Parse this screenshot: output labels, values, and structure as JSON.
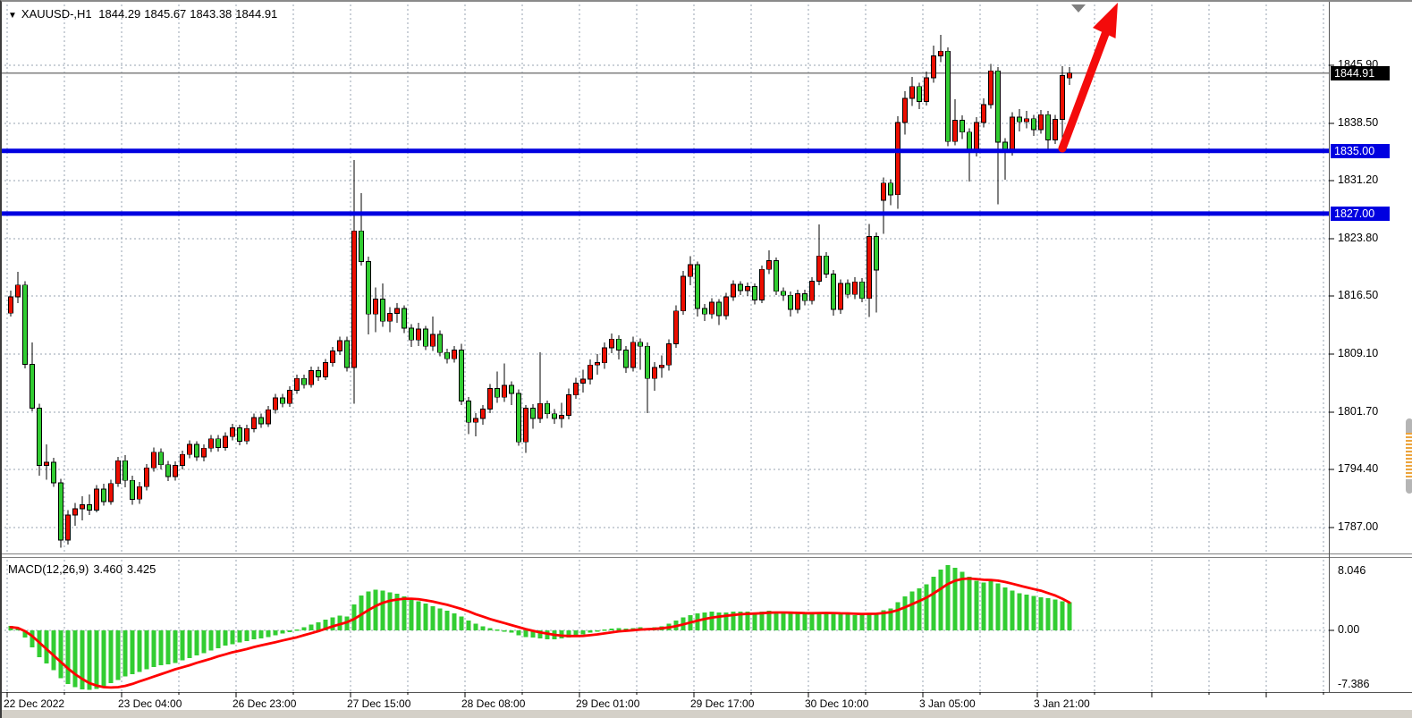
{
  "header": {
    "collapse_glyph": "▼",
    "symbol_period": "XAUUSD-,H1",
    "open": "1844.29",
    "high": "1845.67",
    "low": "1843.38",
    "close": "1844.91"
  },
  "indicator": {
    "label": "MACD(12,26,9)",
    "value": "3.460",
    "signal": "3.425"
  },
  "price_axis": {
    "bid_label": "1844.91",
    "bid_value": 1844.91,
    "levels": [
      {
        "label": "1845.90",
        "price": 1845.9
      },
      {
        "label": "1838.50",
        "price": 1838.5
      },
      {
        "label": "1831.20",
        "price": 1831.2
      },
      {
        "label": "1823.80",
        "price": 1823.8
      },
      {
        "label": "1816.50",
        "price": 1816.5
      },
      {
        "label": "1809.10",
        "price": 1809.1
      },
      {
        "label": "1801.70",
        "price": 1801.7
      },
      {
        "label": "1794.40",
        "price": 1794.4
      },
      {
        "label": "1787.00",
        "price": 1787.0
      }
    ],
    "hlines": [
      {
        "label": "1835.00",
        "price": 1835.0
      },
      {
        "label": "1827.00",
        "price": 1827.0
      }
    ]
  },
  "macd_axis": {
    "top_label": "8.046",
    "zero_label": "0.00",
    "bottom_label": "-7.386",
    "top_value": 8.046,
    "bottom_value": -7.386
  },
  "time_axis": {
    "labels": [
      {
        "text": "22 Dec 2022",
        "bar": 0
      },
      {
        "text": "23 Dec 04:00",
        "bar": 16
      },
      {
        "text": "26 Dec 23:00",
        "bar": 32
      },
      {
        "text": "27 Dec 15:00",
        "bar": 48
      },
      {
        "text": "28 Dec 08:00",
        "bar": 64
      },
      {
        "text": "29 Dec 01:00",
        "bar": 80
      },
      {
        "text": "29 Dec 17:00",
        "bar": 96
      },
      {
        "text": "30 Dec 10:00",
        "bar": 112
      },
      {
        "text": "3 Jan 05:00",
        "bar": 128
      },
      {
        "text": "3 Jan 21:00",
        "bar": 144
      }
    ]
  },
  "colors": {
    "bull_body": "#ec0e00",
    "bear_body": "#32cd32",
    "wick": "#000000",
    "grid": "#97a3b2",
    "hline": "#0000e0",
    "bid_line": "#808080",
    "macd_histogram": "#32cd32",
    "macd_signal": "#ff0000",
    "arrow": "#f40b0b",
    "separator": "#808080",
    "axis_text": "#000000"
  },
  "annotations": {
    "arrow": {
      "description": "bullish projection arrow from 1835.00 support pointing up-right",
      "from_bar": 147,
      "from_price": 1835.0
    },
    "shift_marker": {
      "description": "chart shift triangle marker at top"
    }
  },
  "chart_data": {
    "type": "candlestick_with_macd",
    "symbol": "XAUUSD-",
    "timeframe": "H1",
    "bar_count": 149,
    "price_gridlines": [
      1845.9,
      1838.5,
      1831.2,
      1823.8,
      1816.5,
      1809.1,
      1801.7,
      1794.4,
      1787.0
    ],
    "horizontal_support_lines": [
      1835.0,
      1827.0
    ],
    "current_bid": 1844.91,
    "last_bar_ohlc": [
      1844.29,
      1845.67,
      1843.38,
      1844.91
    ],
    "macd_scale": {
      "max": 8.046,
      "min": -7.386
    },
    "x_label_indices": [
      0,
      16,
      32,
      48,
      64,
      80,
      96,
      112,
      128,
      144
    ],
    "bars_ohlc": [
      [
        1814.3,
        1817.2,
        1813.9,
        1816.4
      ],
      [
        1816.4,
        1819.6,
        1815.6,
        1817.9
      ],
      [
        1817.9,
        1818.4,
        1807.3,
        1807.8
      ],
      [
        1807.8,
        1810.6,
        1801.8,
        1802.2
      ],
      [
        1802.2,
        1802.8,
        1793.6,
        1794.9
      ],
      [
        1794.9,
        1797.6,
        1793.1,
        1795.3
      ],
      [
        1795.3,
        1795.9,
        1792.2,
        1792.7
      ],
      [
        1792.7,
        1793.2,
        1784.4,
        1785.4
      ],
      [
        1785.4,
        1789.2,
        1784.8,
        1788.6
      ],
      [
        1788.6,
        1790.1,
        1787.2,
        1789.4
      ],
      [
        1789.4,
        1791.0,
        1787.9,
        1789.9
      ],
      [
        1789.9,
        1791.2,
        1788.6,
        1789.2
      ],
      [
        1789.2,
        1792.4,
        1788.9,
        1791.9
      ],
      [
        1791.9,
        1792.6,
        1789.8,
        1790.3
      ],
      [
        1790.3,
        1793.1,
        1789.9,
        1792.6
      ],
      [
        1792.6,
        1796.0,
        1792.2,
        1795.5
      ],
      [
        1795.5,
        1796.2,
        1792.1,
        1793.0
      ],
      [
        1793.0,
        1793.6,
        1789.9,
        1790.6
      ],
      [
        1790.6,
        1792.8,
        1790.0,
        1792.2
      ],
      [
        1792.2,
        1795.1,
        1791.7,
        1794.6
      ],
      [
        1794.6,
        1797.2,
        1794.1,
        1796.6
      ],
      [
        1796.6,
        1797.1,
        1794.4,
        1795.0
      ],
      [
        1795.0,
        1795.5,
        1792.9,
        1793.5
      ],
      [
        1793.5,
        1795.4,
        1793.0,
        1794.9
      ],
      [
        1794.9,
        1796.8,
        1794.4,
        1796.3
      ],
      [
        1796.3,
        1798.1,
        1795.8,
        1797.6
      ],
      [
        1797.6,
        1798.0,
        1795.5,
        1796.0
      ],
      [
        1796.0,
        1797.6,
        1795.4,
        1797.1
      ],
      [
        1797.1,
        1798.8,
        1796.6,
        1798.3
      ],
      [
        1798.3,
        1798.8,
        1796.7,
        1797.2
      ],
      [
        1797.2,
        1799.1,
        1796.8,
        1798.6
      ],
      [
        1798.6,
        1800.2,
        1798.1,
        1799.7
      ],
      [
        1799.7,
        1800.1,
        1797.5,
        1798.0
      ],
      [
        1798.0,
        1800.1,
        1797.6,
        1799.6
      ],
      [
        1799.6,
        1801.5,
        1799.1,
        1801.0
      ],
      [
        1801.0,
        1801.5,
        1799.7,
        1800.2
      ],
      [
        1800.2,
        1802.5,
        1799.8,
        1802.0
      ],
      [
        1802.0,
        1804.0,
        1801.5,
        1803.5
      ],
      [
        1803.5,
        1804.0,
        1802.3,
        1802.8
      ],
      [
        1802.8,
        1805.0,
        1802.4,
        1804.5
      ],
      [
        1804.5,
        1806.5,
        1804.0,
        1806.0
      ],
      [
        1806.0,
        1806.5,
        1804.7,
        1805.2
      ],
      [
        1805.2,
        1807.5,
        1804.8,
        1807.0
      ],
      [
        1807.0,
        1807.5,
        1805.7,
        1806.2
      ],
      [
        1806.2,
        1808.5,
        1805.8,
        1808.0
      ],
      [
        1808.0,
        1810.0,
        1807.5,
        1809.5
      ],
      [
        1809.5,
        1811.3,
        1809.0,
        1810.8
      ],
      [
        1810.8,
        1811.3,
        1806.9,
        1807.4
      ],
      [
        1807.4,
        1833.8,
        1802.8,
        1824.8
      ],
      [
        1824.8,
        1829.6,
        1820.4,
        1820.9
      ],
      [
        1820.9,
        1821.5,
        1811.6,
        1814.2
      ],
      [
        1814.2,
        1817.6,
        1811.9,
        1816.1
      ],
      [
        1816.1,
        1818.1,
        1812.6,
        1813.3
      ],
      [
        1813.3,
        1815.1,
        1811.9,
        1814.3
      ],
      [
        1814.3,
        1815.6,
        1813.1,
        1814.9
      ],
      [
        1814.9,
        1815.3,
        1811.8,
        1812.4
      ],
      [
        1812.4,
        1812.9,
        1810.0,
        1810.9
      ],
      [
        1810.9,
        1813.1,
        1810.1,
        1812.3
      ],
      [
        1812.3,
        1812.7,
        1809.6,
        1810.1
      ],
      [
        1810.1,
        1813.9,
        1809.5,
        1811.6
      ],
      [
        1811.6,
        1812.1,
        1808.8,
        1809.3
      ],
      [
        1809.3,
        1809.8,
        1807.9,
        1808.5
      ],
      [
        1808.5,
        1810.1,
        1808.0,
        1809.6
      ],
      [
        1809.6,
        1810.4,
        1802.6,
        1803.1
      ],
      [
        1803.1,
        1803.6,
        1798.9,
        1800.4
      ],
      [
        1800.4,
        1801.6,
        1798.6,
        1800.9
      ],
      [
        1800.9,
        1802.6,
        1800.1,
        1802.1
      ],
      [
        1802.1,
        1805.3,
        1801.6,
        1804.7
      ],
      [
        1804.7,
        1806.9,
        1802.9,
        1803.6
      ],
      [
        1803.6,
        1807.9,
        1803.0,
        1805.1
      ],
      [
        1805.1,
        1805.6,
        1802.6,
        1804.1
      ],
      [
        1804.1,
        1804.6,
        1797.4,
        1797.9
      ],
      [
        1797.9,
        1802.6,
        1796.5,
        1802.2
      ],
      [
        1802.2,
        1802.7,
        1799.6,
        1800.9
      ],
      [
        1800.9,
        1809.3,
        1800.3,
        1802.8
      ],
      [
        1802.8,
        1803.2,
        1800.9,
        1801.5
      ],
      [
        1801.5,
        1802.1,
        1800.2,
        1800.9
      ],
      [
        1800.9,
        1802.9,
        1799.7,
        1801.3
      ],
      [
        1801.3,
        1804.7,
        1800.8,
        1803.9
      ],
      [
        1803.9,
        1806.1,
        1803.4,
        1805.4
      ],
      [
        1805.4,
        1807.1,
        1804.2,
        1805.9
      ],
      [
        1805.9,
        1808.4,
        1805.2,
        1807.7
      ],
      [
        1807.7,
        1809.1,
        1806.5,
        1808.0
      ],
      [
        1808.0,
        1810.6,
        1807.2,
        1809.9
      ],
      [
        1809.9,
        1811.7,
        1809.2,
        1811.0
      ],
      [
        1811.0,
        1811.5,
        1808.4,
        1809.6
      ],
      [
        1809.6,
        1810.1,
        1806.7,
        1807.4
      ],
      [
        1807.4,
        1811.3,
        1806.9,
        1810.6
      ],
      [
        1810.6,
        1811.1,
        1807.1,
        1810.1
      ],
      [
        1810.1,
        1810.6,
        1801.6,
        1806.0
      ],
      [
        1806.0,
        1808.1,
        1804.4,
        1807.4
      ],
      [
        1807.4,
        1808.9,
        1806.1,
        1807.7
      ],
      [
        1807.7,
        1811.0,
        1807.0,
        1810.4
      ],
      [
        1810.4,
        1815.3,
        1809.9,
        1814.6
      ],
      [
        1814.6,
        1819.7,
        1814.1,
        1819.0
      ],
      [
        1819.0,
        1821.6,
        1817.9,
        1820.5
      ],
      [
        1820.5,
        1820.9,
        1813.9,
        1814.9
      ],
      [
        1814.9,
        1815.5,
        1813.3,
        1814.2
      ],
      [
        1814.2,
        1816.2,
        1813.6,
        1815.7
      ],
      [
        1815.7,
        1816.1,
        1812.8,
        1814.0
      ],
      [
        1814.0,
        1816.9,
        1813.5,
        1816.4
      ],
      [
        1816.4,
        1818.5,
        1815.9,
        1818.0
      ],
      [
        1818.0,
        1818.4,
        1816.6,
        1817.2
      ],
      [
        1817.2,
        1818.2,
        1816.5,
        1817.7
      ],
      [
        1817.7,
        1818.1,
        1815.4,
        1816.0
      ],
      [
        1816.0,
        1820.4,
        1815.6,
        1819.9
      ],
      [
        1819.9,
        1822.3,
        1819.3,
        1821.0
      ],
      [
        1821.0,
        1821.4,
        1816.6,
        1817.1
      ],
      [
        1817.1,
        1817.6,
        1815.9,
        1816.6
      ],
      [
        1816.6,
        1817.1,
        1813.9,
        1814.8
      ],
      [
        1814.8,
        1817.3,
        1814.3,
        1816.8
      ],
      [
        1816.8,
        1817.3,
        1815.3,
        1815.9
      ],
      [
        1815.9,
        1818.9,
        1815.4,
        1818.4
      ],
      [
        1818.4,
        1825.6,
        1817.9,
        1821.6
      ],
      [
        1821.6,
        1822.1,
        1818.8,
        1819.3
      ],
      [
        1819.3,
        1819.8,
        1814.0,
        1814.8
      ],
      [
        1814.8,
        1818.6,
        1814.2,
        1818.1
      ],
      [
        1818.1,
        1818.6,
        1816.2,
        1816.7
      ],
      [
        1816.7,
        1818.9,
        1816.1,
        1818.3
      ],
      [
        1818.3,
        1818.8,
        1815.7,
        1816.2
      ],
      [
        1816.2,
        1825.7,
        1813.8,
        1824.1
      ],
      [
        1824.1,
        1824.6,
        1814.4,
        1819.8
      ],
      [
        1828.7,
        1831.6,
        1824.4,
        1830.9
      ],
      [
        1830.9,
        1831.4,
        1828.1,
        1829.4
      ],
      [
        1829.4,
        1839.4,
        1827.6,
        1838.6
      ],
      [
        1838.6,
        1842.6,
        1837.1,
        1841.7
      ],
      [
        1841.7,
        1844.4,
        1840.7,
        1843.2
      ],
      [
        1843.2,
        1843.7,
        1840.3,
        1841.3
      ],
      [
        1841.3,
        1845.1,
        1840.8,
        1844.3
      ],
      [
        1844.3,
        1848.4,
        1843.7,
        1847.1
      ],
      [
        1847.1,
        1849.8,
        1846.3,
        1847.7
      ],
      [
        1847.7,
        1848.2,
        1835.6,
        1836.2
      ],
      [
        1836.2,
        1841.6,
        1835.7,
        1838.9
      ],
      [
        1838.9,
        1839.5,
        1836.5,
        1837.4
      ],
      [
        1837.4,
        1837.9,
        1831.1,
        1834.8
      ],
      [
        1834.8,
        1839.3,
        1834.3,
        1838.6
      ],
      [
        1838.6,
        1841.7,
        1838.0,
        1840.9
      ],
      [
        1840.9,
        1846.1,
        1840.4,
        1845.2
      ],
      [
        1845.2,
        1845.7,
        1828.2,
        1836.1
      ],
      [
        1836.1,
        1836.6,
        1831.3,
        1834.9
      ],
      [
        1834.9,
        1839.9,
        1834.4,
        1839.3
      ],
      [
        1839.3,
        1840.3,
        1837.5,
        1838.7
      ],
      [
        1838.7,
        1840.1,
        1837.9,
        1839.1
      ],
      [
        1839.1,
        1839.6,
        1836.9,
        1837.7
      ],
      [
        1837.7,
        1840.2,
        1837.2,
        1839.6
      ],
      [
        1839.6,
        1840.1,
        1834.9,
        1836.4
      ],
      [
        1836.4,
        1839.6,
        1835.9,
        1839.0
      ],
      [
        1839.0,
        1845.8,
        1836.4,
        1844.6
      ],
      [
        1844.29,
        1845.67,
        1843.38,
        1844.91
      ]
    ],
    "macd": [
      0.55,
      0.35,
      -0.9,
      -2.1,
      -3.3,
      -4.1,
      -4.9,
      -5.9,
      -6.6,
      -7.0,
      -7.25,
      -7.35,
      -7.2,
      -6.9,
      -6.5,
      -6.1,
      -5.7,
      -5.4,
      -5.1,
      -4.8,
      -4.5,
      -4.3,
      -4.2,
      -4.0,
      -3.7,
      -3.4,
      -3.1,
      -2.8,
      -2.5,
      -2.2,
      -1.9,
      -1.7,
      -1.5,
      -1.3,
      -1.1,
      -1.0,
      -0.8,
      -0.6,
      -0.4,
      -0.2,
      0.1,
      0.4,
      0.7,
      1.0,
      1.3,
      1.6,
      1.8,
      1.7,
      3.2,
      4.3,
      4.8,
      5.0,
      4.9,
      4.7,
      4.5,
      4.2,
      3.9,
      3.6,
      3.3,
      3.0,
      2.7,
      2.4,
      2.1,
      1.7,
      1.2,
      0.8,
      0.5,
      0.3,
      0.1,
      -0.1,
      -0.3,
      -0.6,
      -0.8,
      -0.9,
      -1.0,
      -1.1,
      -1.1,
      -1.0,
      -0.9,
      -0.7,
      -0.5,
      -0.3,
      -0.1,
      0.1,
      0.2,
      0.3,
      0.2,
      0.3,
      0.4,
      0.3,
      0.4,
      0.5,
      0.8,
      1.2,
      1.6,
      1.9,
      2.1,
      2.2,
      2.3,
      2.2,
      2.2,
      2.3,
      2.3,
      2.3,
      2.2,
      2.3,
      2.4,
      2.3,
      2.2,
      2.1,
      2.1,
      2.0,
      2.1,
      2.2,
      2.2,
      2.1,
      2.0,
      2.0,
      1.9,
      1.9,
      2.1,
      2.1,
      2.5,
      2.7,
      3.5,
      4.2,
      4.8,
      5.2,
      5.7,
      6.6,
      7.5,
      8.05,
      7.7,
      7.2,
      6.6,
      6.1,
      5.9,
      6.1,
      5.8,
      5.3,
      4.9,
      4.6,
      4.4,
      4.25,
      4.1,
      3.95,
      3.8,
      3.6,
      3.46
    ],
    "macd_signal": [
      0.4,
      0.3,
      -0.1,
      -0.7,
      -1.5,
      -2.3,
      -3.1,
      -3.9,
      -4.7,
      -5.4,
      -6.0,
      -6.5,
      -6.8,
      -7.0,
      -7.05,
      -7.0,
      -6.85,
      -6.6,
      -6.3,
      -6.0,
      -5.7,
      -5.4,
      -5.1,
      -4.8,
      -4.55,
      -4.3,
      -4.0,
      -3.75,
      -3.5,
      -3.2,
      -2.95,
      -2.7,
      -2.5,
      -2.3,
      -2.05,
      -1.85,
      -1.65,
      -1.45,
      -1.25,
      -1.05,
      -0.85,
      -0.6,
      -0.35,
      -0.1,
      0.2,
      0.5,
      0.75,
      1.0,
      1.4,
      1.95,
      2.5,
      3.0,
      3.4,
      3.65,
      3.8,
      3.9,
      3.9,
      3.85,
      3.7,
      3.55,
      3.35,
      3.15,
      2.9,
      2.65,
      2.35,
      2.0,
      1.7,
      1.4,
      1.15,
      0.9,
      0.65,
      0.4,
      0.15,
      -0.05,
      -0.25,
      -0.4,
      -0.55,
      -0.65,
      -0.7,
      -0.7,
      -0.68,
      -0.6,
      -0.5,
      -0.38,
      -0.25,
      -0.12,
      -0.05,
      0.02,
      0.1,
      0.14,
      0.19,
      0.25,
      0.36,
      0.53,
      0.74,
      0.97,
      1.2,
      1.4,
      1.58,
      1.7,
      1.8,
      1.9,
      1.98,
      2.04,
      2.07,
      2.12,
      2.18,
      2.2,
      2.2,
      2.18,
      2.16,
      2.13,
      2.12,
      2.14,
      2.15,
      2.14,
      2.11,
      2.09,
      2.05,
      2.02,
      2.04,
      2.05,
      2.14,
      2.25,
      2.5,
      2.84,
      3.23,
      3.63,
      4.04,
      4.55,
      5.14,
      5.72,
      6.12,
      6.34,
      6.39,
      6.33,
      6.24,
      6.21,
      6.13,
      5.96,
      5.75,
      5.52,
      5.3,
      5.09,
      4.89,
      4.6,
      4.3,
      3.9,
      3.425
    ]
  }
}
